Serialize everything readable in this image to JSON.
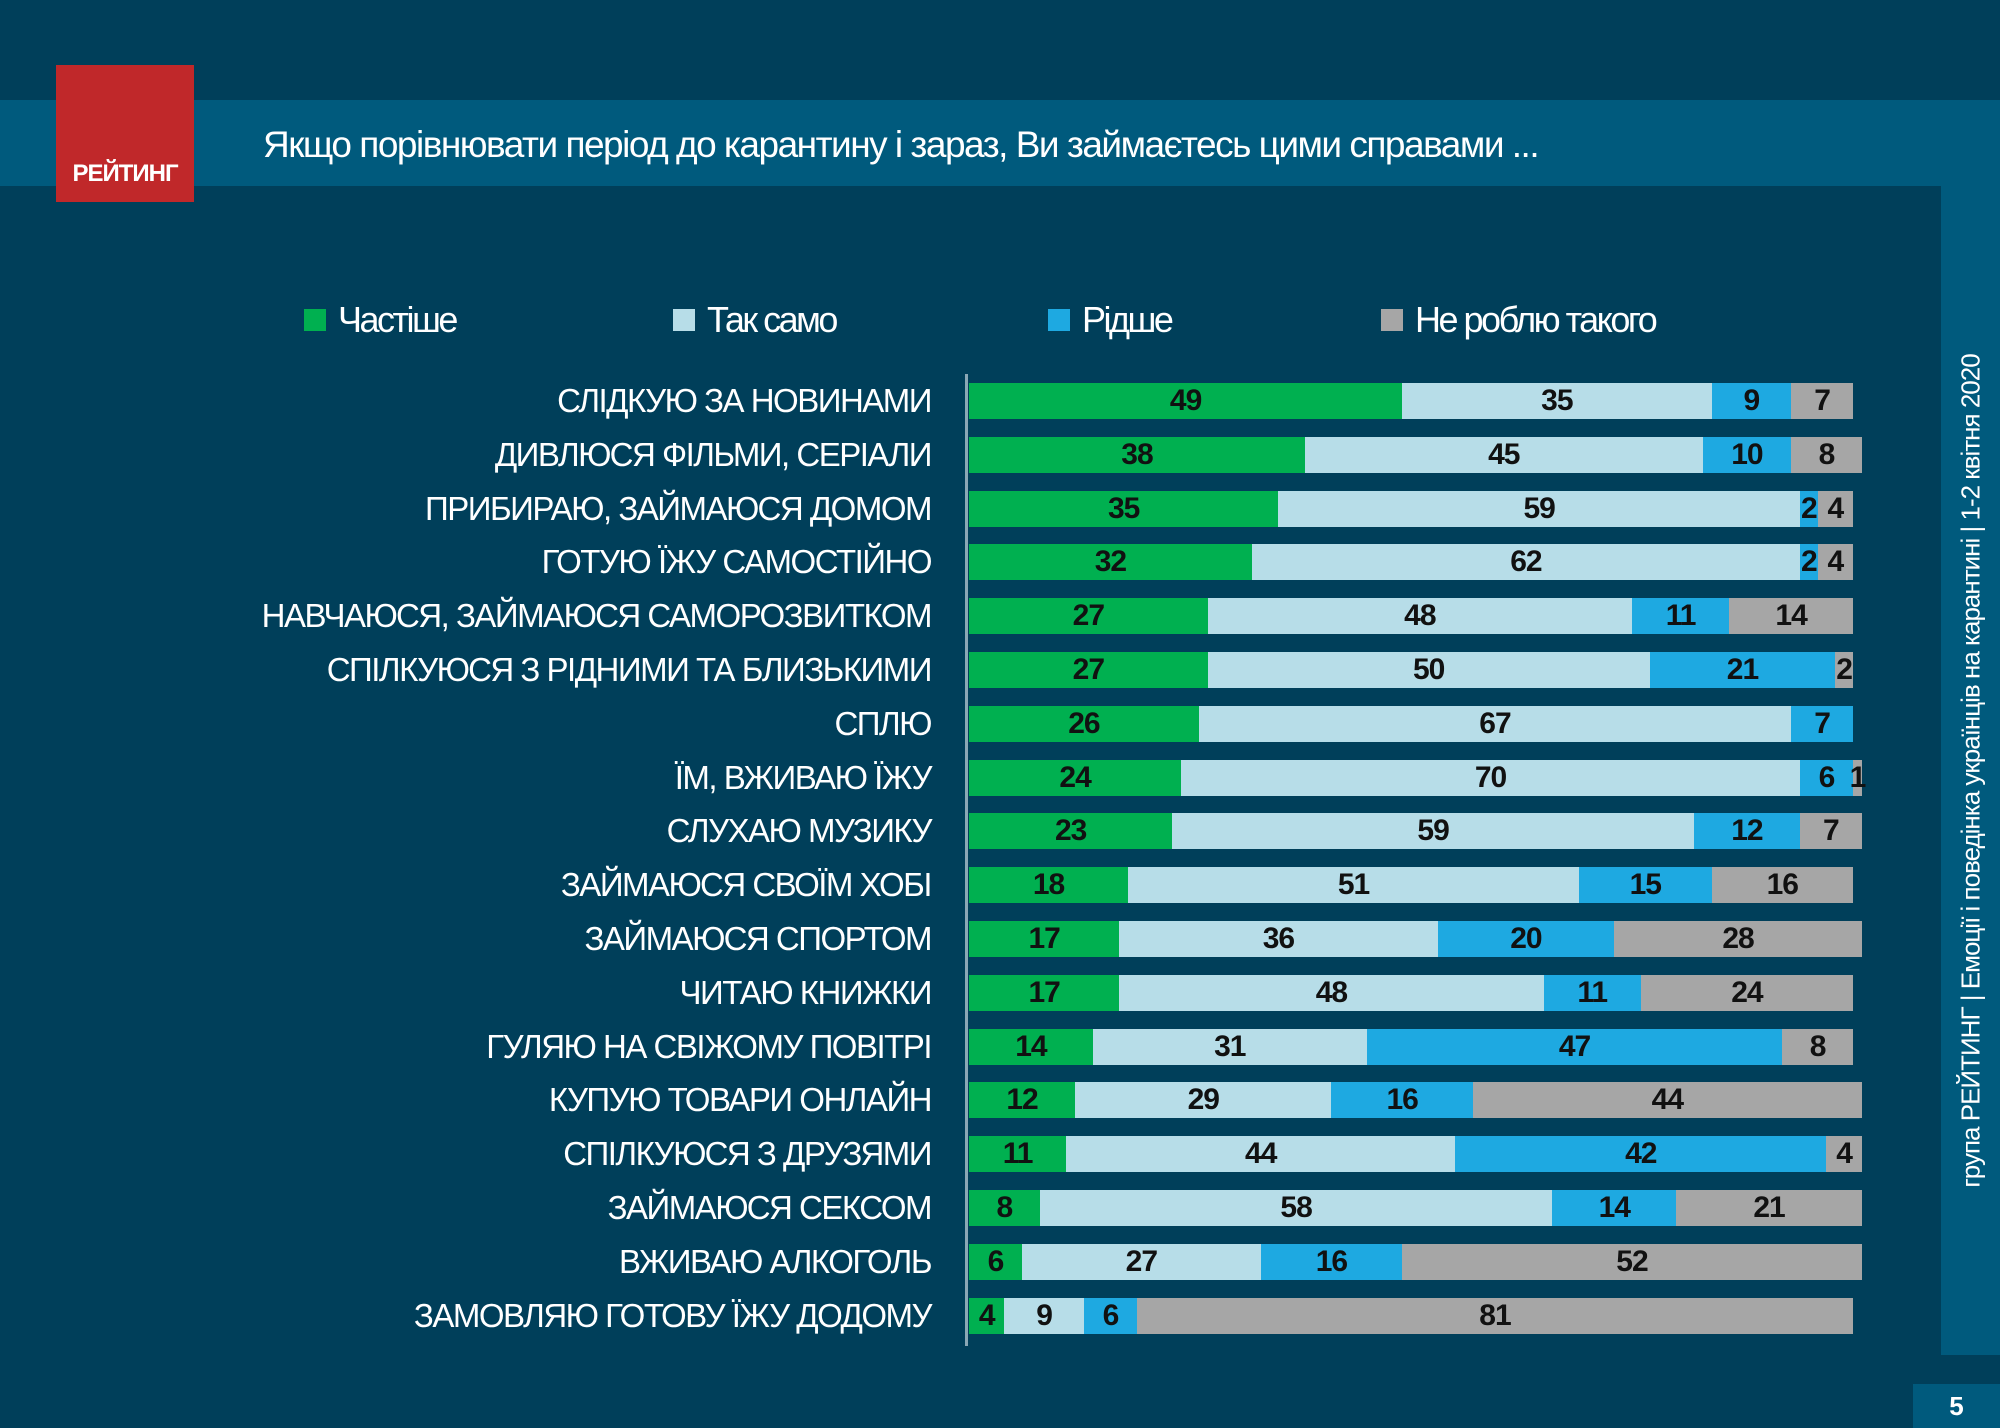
{
  "logo": {
    "text": "РЕЙТИНГ"
  },
  "header": {
    "title": "Якщо порівнювати  період до карантину і зараз, Ви займаєтесь цими справами  ..."
  },
  "side_note": "група РЕЙТИНГ  |  Емоції і поведінка українців на карантині  |  1-2 квітня 2020",
  "page_number": "5",
  "chart_data": {
    "type": "bar",
    "orientation": "horizontal",
    "stacked": true,
    "xlim": [
      0,
      100
    ],
    "legend_position": "top",
    "grid": false,
    "categories": [
      "СЛІДКУЮ ЗА НОВИНАМИ",
      "ДИВЛЮСЯ ФІЛЬМИ, СЕРІАЛИ",
      "ПРИБИРАЮ, ЗАЙМАЮСЯ ДОМОМ",
      "ГОТУЮ ЇЖУ САМОСТІЙНО",
      "НАВЧАЮСЯ, ЗАЙМАЮСЯ САМОРОЗВИТКОМ",
      "СПІЛКУЮСЯ З РІДНИМИ ТА БЛИЗЬКИМИ",
      "СПЛЮ",
      "ЇМ, ВЖИВАЮ ЇЖУ",
      "СЛУХАЮ МУЗИКУ",
      "ЗАЙМАЮСЯ СВОЇМ ХОБІ",
      "ЗАЙМАЮСЯ СПОРТОМ",
      "ЧИТАЮ КНИЖКИ",
      "ГУЛЯЮ НА СВІЖОМУ ПОВІТРІ",
      "КУПУЮ ТОВАРИ ОНЛАЙН",
      "СПІЛКУЮСЯ З ДРУЗЯМИ",
      "ЗАЙМАЮСЯ СЕКСОМ",
      "ВЖИВАЮ АЛКОГОЛЬ",
      "ЗАМОВЛЯЮ ГОТОВУ ЇЖУ ДОДОМУ"
    ],
    "series": [
      {
        "name": "Частіше",
        "color": "#00b050",
        "values": [
          49,
          38,
          35,
          32,
          27,
          27,
          26,
          24,
          23,
          18,
          17,
          17,
          14,
          12,
          11,
          8,
          6,
          4
        ]
      },
      {
        "name": "Так само",
        "color": "#b7dde8",
        "values": [
          35,
          45,
          59,
          62,
          48,
          50,
          67,
          70,
          59,
          51,
          36,
          48,
          31,
          29,
          44,
          58,
          27,
          9
        ]
      },
      {
        "name": "Рідше",
        "color": "#1ea9e1",
        "values": [
          9,
          10,
          2,
          2,
          11,
          21,
          7,
          6,
          12,
          15,
          20,
          11,
          47,
          16,
          42,
          14,
          16,
          6
        ]
      },
      {
        "name": "Не роблю такого",
        "color": "#a6a6a6",
        "values": [
          7,
          8,
          4,
          4,
          14,
          2,
          0,
          1,
          7,
          16,
          28,
          24,
          8,
          44,
          4,
          21,
          52,
          81
        ]
      }
    ]
  }
}
